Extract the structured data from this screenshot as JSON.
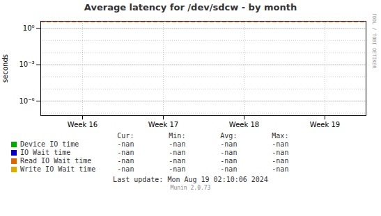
{
  "chart_data": {
    "type": "line",
    "title": "Average latency for /dev/sdcw - by month",
    "ylabel": "seconds",
    "categories": [
      "Week 16",
      "Week 17",
      "Week 18",
      "Week 19"
    ],
    "series": [
      {
        "name": "Device IO time",
        "color": "#00aa00",
        "values": [
          null,
          null,
          null,
          null
        ],
        "stats": [
          "-nan",
          "-nan",
          "-nan",
          "-nan"
        ]
      },
      {
        "name": "IO Wait time",
        "color": "#0000cc",
        "values": [
          null,
          null,
          null,
          null
        ],
        "stats": [
          "-nan",
          "-nan",
          "-nan",
          "-nan"
        ]
      },
      {
        "name": "Read IO Wait time",
        "color": "#dd6600",
        "values": [
          null,
          null,
          null,
          null
        ],
        "stats": [
          "-nan",
          "-nan",
          "-nan",
          "-nan"
        ]
      },
      {
        "name": "Write IO Wait time",
        "color": "#ddaa00",
        "values": [
          null,
          null,
          null,
          null
        ],
        "stats": [
          "-nan",
          "-nan",
          "-nan",
          "-nan"
        ]
      }
    ],
    "stats_headers": [
      "Cur:",
      "Min:",
      "Avg:",
      "Max:"
    ],
    "log": "y",
    "ylim": [
      6.3095734448019e-08,
      3.981071705534972
    ],
    "yticks": [
      {
        "value": 1e-06,
        "label": "10⁻⁶"
      },
      {
        "value": 0.001,
        "label": "10⁻³"
      },
      {
        "value": 1,
        "label": "10⁰"
      }
    ],
    "minor_yticks": [
      1e-07,
      1e-06,
      1e-05,
      0.0001,
      0.001,
      0.01,
      0.1,
      1
    ],
    "grid": true,
    "legend": "bottom",
    "reference_line": {
      "y": 3.5,
      "color": "#ff9900",
      "line_style": "dashed"
    },
    "watermark": "RRDTOOL / TOBI OETIKER",
    "last_update": "Last update: Mon Aug 19 02:10:06 2024",
    "footer": "Munin 2.0.73"
  }
}
